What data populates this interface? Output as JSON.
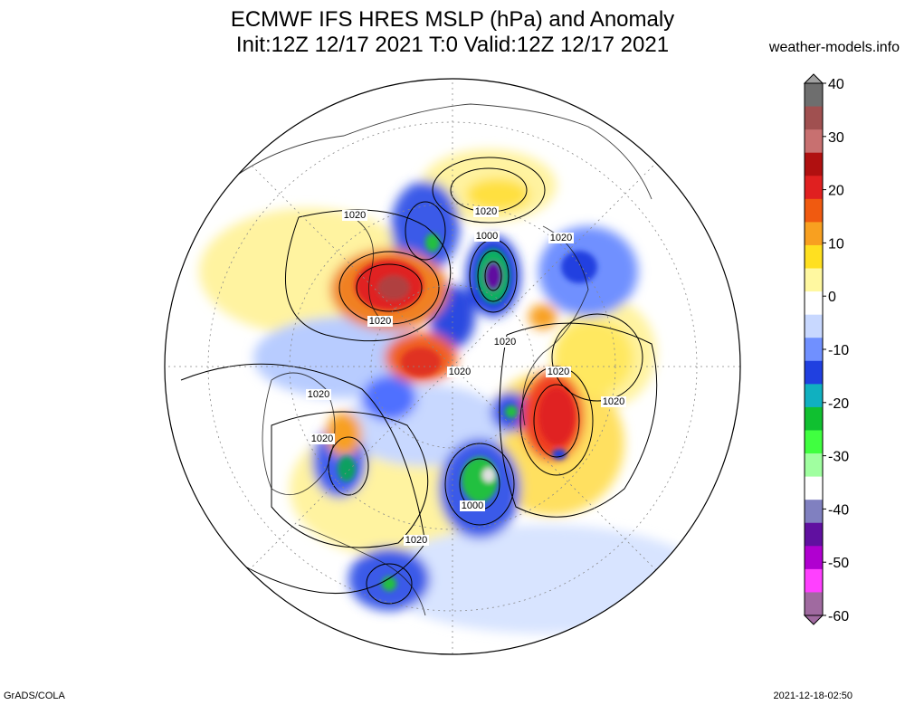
{
  "header": {
    "title_line1": "ECMWF IFS HRES MSLP (hPa) and Anomaly",
    "title_line2": "Init:12Z 12/17 2021 T:0 Valid:12Z 12/17 2021",
    "site": "weather-models.info"
  },
  "footer": {
    "software": "GrADS/COLA",
    "timestamp": "2021-12-18-02:50"
  },
  "colorbar": {
    "ticks": [
      "40",
      "30",
      "20",
      "10",
      "0",
      "-10",
      "-20",
      "-30",
      "-40",
      "-50",
      "-60"
    ],
    "colors": [
      "#6e6e6e",
      "#a05050",
      "#c87070",
      "#b01010",
      "#e02020",
      "#f05a10",
      "#f8a020",
      "#ffe020",
      "#fff8a0",
      "#ffffff",
      "#c8d8ff",
      "#7090ff",
      "#2040e0",
      "#10b0c0",
      "#10c030",
      "#40ff40",
      "#a0ffa0",
      "#ffffff",
      "#8080c0",
      "#6010a0",
      "#b000d0",
      "#ff40ff",
      "#a06aa0"
    ]
  },
  "map": {
    "contour_labels": [
      "1020",
      "1020",
      "1000",
      "1020",
      "1020",
      "1020",
      "1020",
      "1020",
      "1020",
      "1020",
      "1020",
      "1000",
      "1020"
    ]
  }
}
